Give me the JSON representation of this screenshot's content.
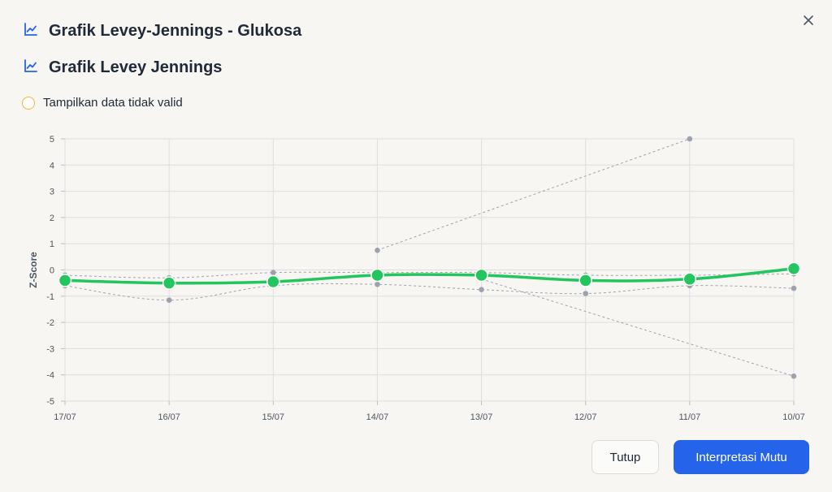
{
  "dialog": {
    "title": "Grafik Levey-Jennings - Glukosa",
    "section_title": "Grafik Levey Jennings",
    "toggle_label": "Tampilkan data tidak valid",
    "close_button": "Tutup",
    "primary_button": "Interpretasi Mutu"
  },
  "colors": {
    "accent": "#2563eb",
    "main_series": "#22c55e",
    "other_series": "#9ca3af",
    "toggle_ring": "#f2b632"
  },
  "chart_data": {
    "type": "line",
    "ylabel": "Z-Score",
    "xlabel": "",
    "ylim": [
      -5,
      5
    ],
    "yticks": [
      5,
      4,
      3,
      2,
      1,
      0,
      -1,
      -2,
      -3,
      -4,
      -5
    ],
    "categories": [
      "17/07",
      "16/07",
      "15/07",
      "14/07",
      "13/07",
      "12/07",
      "11/07",
      "10/07"
    ],
    "grid": true,
    "series": [
      {
        "values": [
          -0.4,
          -0.5,
          -0.45,
          -0.2,
          -0.2,
          -0.4,
          -0.35,
          0.05
        ],
        "style": "main"
      },
      {
        "values": [
          -0.2,
          -0.3,
          -0.1,
          -0.1,
          -0.1,
          -0.2,
          -0.2,
          -0.15
        ],
        "style": "dashed"
      },
      {
        "values": [
          -0.6,
          -1.15,
          -0.6,
          -0.55,
          -0.75,
          -0.9,
          -0.6,
          -0.7
        ],
        "style": "dashed"
      },
      {
        "values": [
          null,
          null,
          null,
          0.75,
          null,
          null,
          5.0,
          null
        ],
        "style": "dashed"
      },
      {
        "values": [
          null,
          null,
          null,
          null,
          -0.35,
          null,
          null,
          -4.05
        ],
        "style": "dashed"
      }
    ]
  }
}
